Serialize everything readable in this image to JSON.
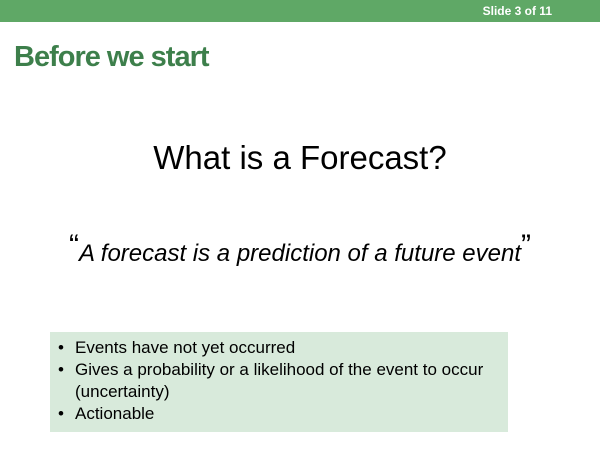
{
  "header": {
    "slide_counter": "Slide 3 of 11"
  },
  "slide": {
    "heading": "Before we start",
    "question": "What is a Forecast?",
    "definition": {
      "open_quote": "“",
      "text": "A forecast is a prediction of a future event",
      "close_quote": "”"
    },
    "bullets": [
      {
        "marker": "•",
        "text": "Events have not yet occurred"
      },
      {
        "marker": "•",
        "text": "Gives a probability or a likelihood of the event to occur (uncertainty)"
      },
      {
        "marker": "•",
        "text": "Actionable"
      }
    ]
  },
  "colors": {
    "top_bar": "#5fa866",
    "heading": "#3d7f4b",
    "bullet_box_background": "#d8eadb"
  }
}
